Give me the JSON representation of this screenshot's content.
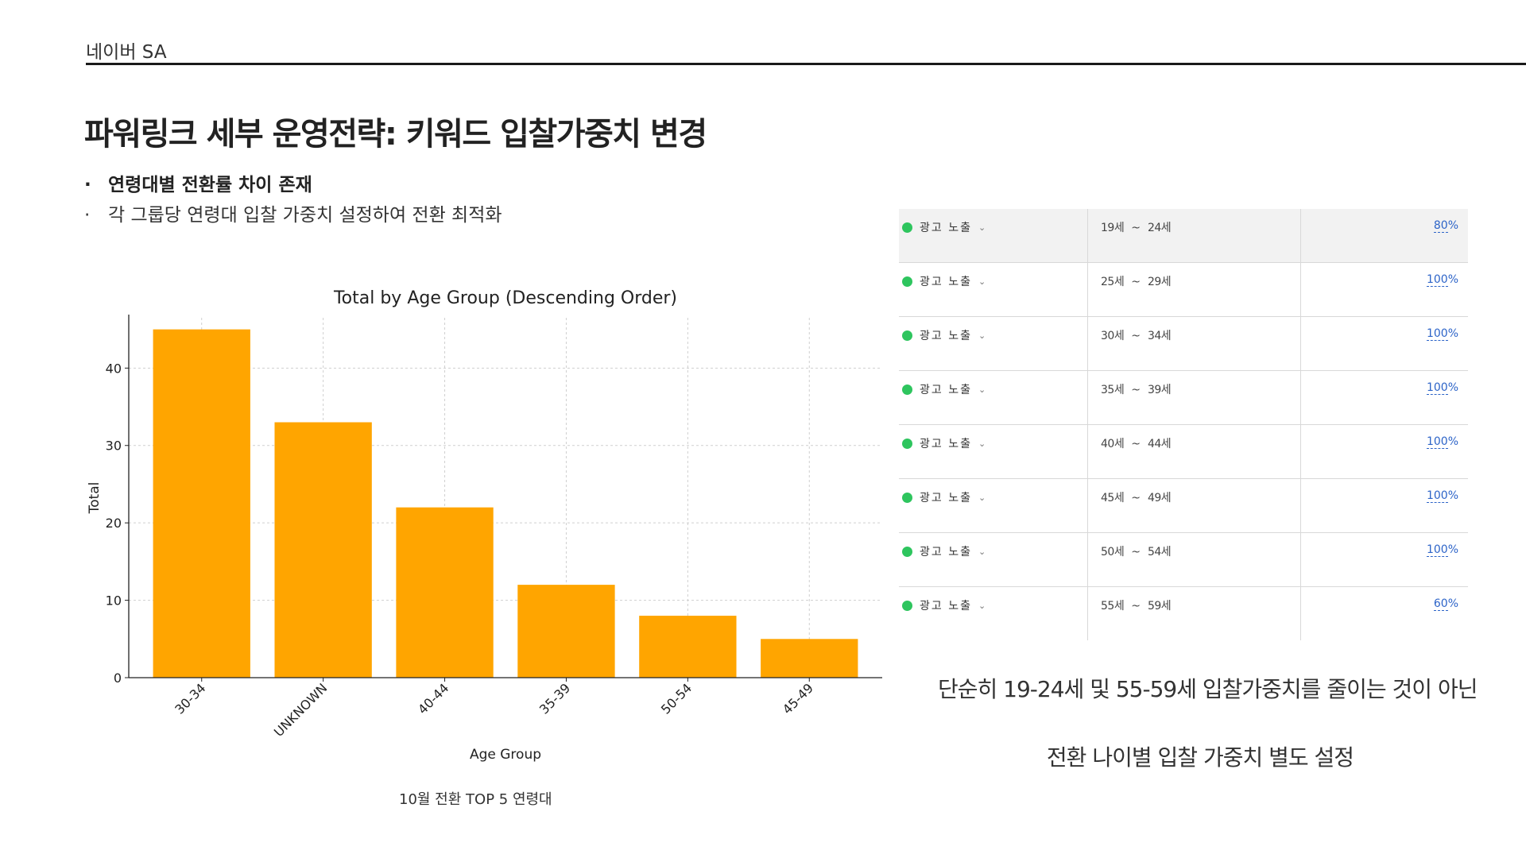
{
  "header": {
    "label": "네이버 SA"
  },
  "title": "파워링크 세부 운영전략: 키워드 입찰가중치 변경",
  "bullets": [
    {
      "text": "연령대별 전환률 차이 존재",
      "bold": true
    },
    {
      "text": "각 그룹당 연령대 입찰 가중치 설정하여 전환 최적화",
      "bold": false
    }
  ],
  "chart_data": {
    "type": "bar",
    "title": "Total by Age Group (Descending Order)",
    "xlabel": "Age Group",
    "ylabel": "Total",
    "categories": [
      "30-34",
      "UNKNOWN",
      "40-44",
      "35-39",
      "50-54",
      "45-49"
    ],
    "values": [
      45,
      33,
      22,
      12,
      8,
      5
    ],
    "ylim": [
      0,
      46.5
    ],
    "yticks": [
      0,
      10,
      20,
      30,
      40
    ],
    "grid": true,
    "bar_color": "#FFA500"
  },
  "chart_caption": "10월 전환 TOP 5 연령대",
  "bid_table": {
    "status_label": "광고 노출",
    "status_color": "#2ec55e",
    "chevron_icon": "chevron-down-icon",
    "rows": [
      {
        "from": "19세",
        "to": "24세",
        "pct": "80",
        "unit": "%"
      },
      {
        "from": "25세",
        "to": "29세",
        "pct": "100",
        "unit": "%"
      },
      {
        "from": "30세",
        "to": "34세",
        "pct": "100",
        "unit": "%"
      },
      {
        "from": "35세",
        "to": "39세",
        "pct": "100",
        "unit": "%"
      },
      {
        "from": "40세",
        "to": "44세",
        "pct": "100",
        "unit": "%"
      },
      {
        "from": "45세",
        "to": "49세",
        "pct": "100",
        "unit": "%"
      },
      {
        "from": "50세",
        "to": "54세",
        "pct": "100",
        "unit": "%"
      },
      {
        "from": "55세",
        "to": "59세",
        "pct": "60",
        "unit": "%"
      }
    ]
  },
  "notes": {
    "line1": "단순히 19-24세 및 55-59세 입찰가중치를 줄이는 것이 아닌",
    "line2": "전환 나이별 입찰 가중치 별도 설정"
  }
}
